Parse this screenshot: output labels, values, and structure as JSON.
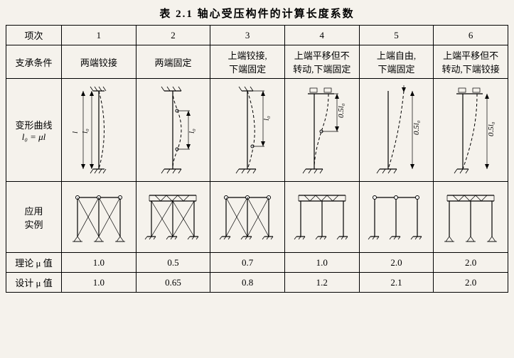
{
  "title": "表 2.1  轴心受压构件的计算长度系数",
  "headers": {
    "item": "项次",
    "support": "支承条件",
    "deform_l1": "变形曲线",
    "deform_l2": "l₀ = μl",
    "example": "应用\n实例",
    "theory": "理论 μ 值",
    "design": "设计 μ 值"
  },
  "cols": [
    {
      "n": "1",
      "support": "两端铰接",
      "theory": "1.0",
      "design": "1.0"
    },
    {
      "n": "2",
      "support": "两端固定",
      "theory": "0.5",
      "design": "0.65"
    },
    {
      "n": "3",
      "support": "上端铰接,\n下端固定",
      "theory": "0.7",
      "design": "0.8"
    },
    {
      "n": "4",
      "support": "上端平移但不\n转动,下端固定",
      "theory": "1.0",
      "design": "1.2"
    },
    {
      "n": "5",
      "support": "上端自由,\n下端固定",
      "theory": "2.0",
      "design": "2.1"
    },
    {
      "n": "6",
      "support": "上端平移但不\n转动,下端铰接",
      "theory": "2.0",
      "design": "2.0"
    }
  ],
  "svg": {
    "text_color": "#000"
  }
}
